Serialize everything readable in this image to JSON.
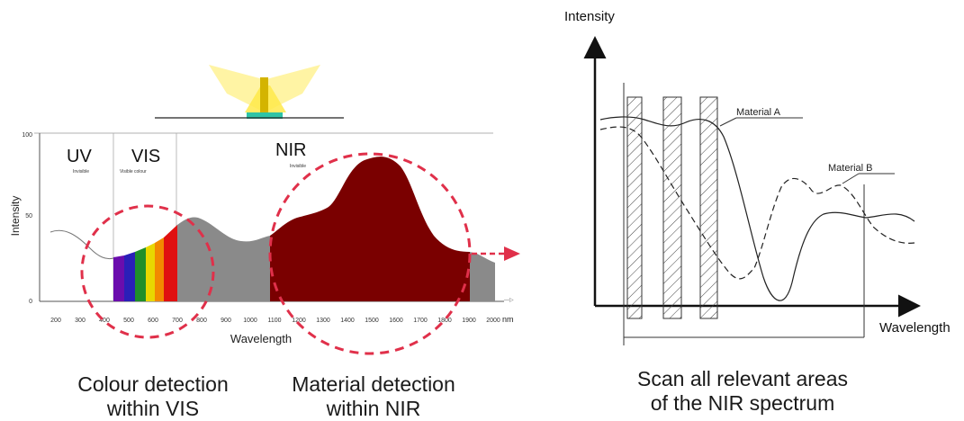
{
  "left_diagram": {
    "ylabel": "Intensity",
    "xlabel": "Wavelength",
    "x_unit": "nm",
    "y_ticks": [
      "0",
      "50",
      "100"
    ],
    "x_ticks": [
      "200",
      "300",
      "400",
      "500",
      "600",
      "700",
      "800",
      "900",
      "1000",
      "1100",
      "1200",
      "1300",
      "1400",
      "1500",
      "1600",
      "1700",
      "1800",
      "1900",
      "2000"
    ],
    "regions": [
      {
        "name": "UV",
        "sub": "Invisible"
      },
      {
        "name": "VIS",
        "sub": "Visible colour"
      },
      {
        "name": "NIR",
        "sub": "Invisible"
      }
    ],
    "rainbow_colors": [
      "#6a0dad",
      "#2a1fb8",
      "#1f8f2a",
      "#e8d800",
      "#f28a00",
      "#e01010"
    ],
    "nir_color": "#7a0000",
    "gray_color": "#8a8a8a",
    "accent_color": "#e0304a",
    "caption_vis": [
      "Colour detection",
      "within VIS"
    ],
    "caption_nir": [
      "Material detection",
      "within NIR"
    ]
  },
  "right_diagram": {
    "ylabel": "Intensity",
    "xlabel": "Wavelength",
    "legend": [
      "Material A",
      "Material B"
    ],
    "caption": [
      "Scan all relevant areas",
      "of the NIR spectrum"
    ]
  }
}
